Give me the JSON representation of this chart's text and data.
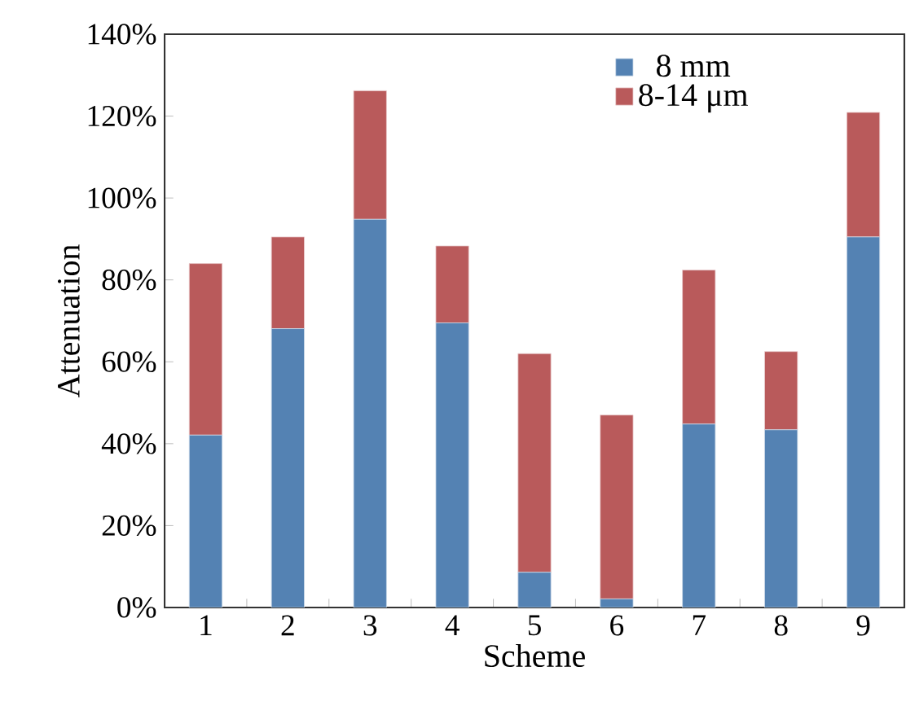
{
  "chart_data": {
    "type": "bar",
    "stacked": true,
    "xlabel": "Scheme",
    "ylabel": "Attenuation",
    "categories": [
      "1",
      "2",
      "3",
      "4",
      "5",
      "6",
      "7",
      "8",
      "9"
    ],
    "series": [
      {
        "name": "8 mm",
        "color": "#5482b3",
        "values": [
          42.1,
          68.1,
          94.8,
          69.5,
          8.6,
          2.1,
          44.8,
          43.4,
          90.5
        ]
      },
      {
        "name": "8-14 μm",
        "color": "#b95a5b",
        "values": [
          41.9,
          22.4,
          31.4,
          18.8,
          53.4,
          44.9,
          37.6,
          19.1,
          30.4
        ]
      }
    ],
    "ylim": [
      0,
      140
    ],
    "yticks": [
      {
        "value": 0,
        "label": "0%"
      },
      {
        "value": 20,
        "label": "20%"
      },
      {
        "value": 40,
        "label": "40%"
      },
      {
        "value": 60,
        "label": "60%"
      },
      {
        "value": 80,
        "label": "80%"
      },
      {
        "value": 100,
        "label": "100%"
      },
      {
        "value": 120,
        "label": "120%"
      },
      {
        "value": 140,
        "label": "140%"
      }
    ],
    "grid": false,
    "legend": "top right"
  }
}
